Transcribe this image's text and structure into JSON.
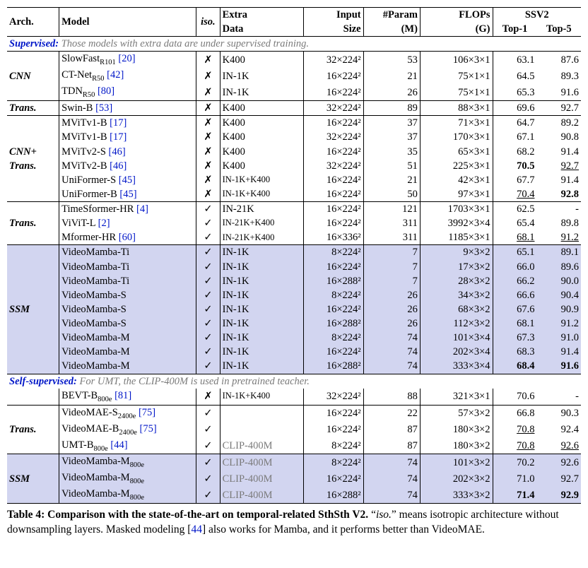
{
  "header": {
    "arch": "Arch.",
    "model": "Model",
    "iso": "iso.",
    "extra1": "Extra",
    "extra2": "Data",
    "input1": "Input",
    "input2": "Size",
    "param1": "#Param",
    "param2": "(M)",
    "flops1": "FLOPs",
    "flops2": "(G)",
    "ssv2": "SSV2",
    "top1": "Top-1",
    "top5": "Top-5"
  },
  "sections": {
    "sup": {
      "lead": "Supervised:",
      "note": "Those models with extra data are under supervised training."
    },
    "self": {
      "lead": "Self-supervised:",
      "note": "For UMT, the CLIP-400M is used in pretrained teacher."
    }
  },
  "groups": [
    {
      "arch": "CNN",
      "archItalic": true,
      "section": "sup",
      "rows": [
        {
          "model": "SlowFast",
          "sub": "R101",
          "ref": "[20]",
          "iso": "✗",
          "extra": "K400",
          "input": "32×224²",
          "param": "53",
          "flops": "106×3×1",
          "t1": "63.1",
          "t5": "87.6"
        },
        {
          "model": "CT-Net",
          "sub": "R50",
          "ref": "[42]",
          "iso": "✗",
          "extra": "IN-1K",
          "input": "16×224²",
          "param": "21",
          "flops": "75×1×1",
          "t1": "64.5",
          "t5": "89.3"
        },
        {
          "model": "TDN",
          "sub": "R50",
          "ref": "[80]",
          "iso": "✗",
          "extra": "IN-1K",
          "input": "16×224²",
          "param": "26",
          "flops": "75×1×1",
          "t1": "65.3",
          "t5": "91.6"
        }
      ]
    },
    {
      "arch": "Trans.",
      "archItalic": true,
      "section": "sup",
      "rows": [
        {
          "model": "Swin-B",
          "ref": "[53]",
          "iso": "✗",
          "extra": "K400",
          "input": "32×224²",
          "param": "89",
          "flops": "88×3×1",
          "t1": "69.6",
          "t5": "92.7"
        }
      ]
    },
    {
      "arch": "CNN+",
      "arch2": "Trans.",
      "archItalic": true,
      "section": "sup",
      "rows": [
        {
          "model": "MViTv1-B",
          "ref": "[17]",
          "iso": "✗",
          "extra": "K400",
          "input": "16×224²",
          "param": "37",
          "flops": "71×3×1",
          "t1": "64.7",
          "t5": "89.2"
        },
        {
          "model": "MViTv1-B",
          "ref": "[17]",
          "iso": "✗",
          "extra": "K400",
          "input": "32×224²",
          "param": "37",
          "flops": "170×3×1",
          "t1": "67.1",
          "t5": "90.8"
        },
        {
          "model": "MViTv2-S",
          "ref": "[46]",
          "iso": "✗",
          "extra": "K400",
          "input": "16×224²",
          "param": "35",
          "flops": "65×3×1",
          "t1": "68.2",
          "t5": "91.4"
        },
        {
          "model": "MViTv2-B",
          "ref": "[46]",
          "iso": "✗",
          "extra": "K400",
          "input": "32×224²",
          "param": "51",
          "flops": "225×3×1",
          "t1": "70.5",
          "t1b": true,
          "t5": "92.7",
          "t5ul": true
        },
        {
          "model": "UniFormer-S",
          "ref": "[45]",
          "iso": "✗",
          "extra": "IN-1K+K400",
          "extraSmall": true,
          "input": "16×224²",
          "param": "21",
          "flops": "42×3×1",
          "t1": "67.7",
          "t5": "91.4"
        },
        {
          "model": "UniFormer-B",
          "ref": "[45]",
          "iso": "✗",
          "extra": "IN-1K+K400",
          "extraSmall": true,
          "input": "16×224²",
          "param": "50",
          "flops": "97×3×1",
          "t1": "70.4",
          "t1ul": true,
          "t5": "92.8",
          "t5b": true
        }
      ]
    },
    {
      "arch": "Trans.",
      "archItalic": true,
      "section": "sup",
      "rows": [
        {
          "model": "TimeSformer-HR",
          "ref": "[4]",
          "iso": "✓",
          "extra": "IN-21K",
          "input": "16×224²",
          "param": "121",
          "flops": "1703×3×1",
          "t1": "62.5",
          "t5": "-"
        },
        {
          "model": "ViViT-L",
          "ref": "[2]",
          "iso": "✓",
          "extra": "IN-21K+K400",
          "extraSmall": true,
          "input": "16×224²",
          "param": "311",
          "flops": "3992×3×4",
          "t1": "65.4",
          "t5": "89.8"
        },
        {
          "model": "Mformer-HR",
          "ref": "[60]",
          "iso": "✓",
          "extra": "IN-21K+K400",
          "extraSmall": true,
          "input": "16×336²",
          "param": "311",
          "flops": "1185×3×1",
          "t1": "68.1",
          "t1ul": true,
          "t5": "91.2",
          "t5ul": true
        }
      ]
    },
    {
      "arch": "SSM",
      "archItalic": true,
      "section": "sup",
      "hl": true,
      "rows": [
        {
          "model": "VideoMamba-Ti",
          "iso": "✓",
          "extra": "IN-1K",
          "input": "8×224²",
          "param": "7",
          "flops": "9×3×2",
          "t1": "65.1",
          "t5": "89.1"
        },
        {
          "model": "VideoMamba-Ti",
          "iso": "✓",
          "extra": "IN-1K",
          "input": "16×224²",
          "param": "7",
          "flops": "17×3×2",
          "t1": "66.0",
          "t5": "89.6"
        },
        {
          "model": "VideoMamba-Ti",
          "iso": "✓",
          "extra": "IN-1K",
          "input": "16×288²",
          "param": "7",
          "flops": "28×3×2",
          "t1": "66.2",
          "t5": "90.0"
        },
        {
          "model": "VideoMamba-S",
          "iso": "✓",
          "extra": "IN-1K",
          "input": "8×224²",
          "param": "26",
          "flops": "34×3×2",
          "t1": "66.6",
          "t5": "90.4"
        },
        {
          "model": "VideoMamba-S",
          "iso": "✓",
          "extra": "IN-1K",
          "input": "16×224²",
          "param": "26",
          "flops": "68×3×2",
          "t1": "67.6",
          "t5": "90.9"
        },
        {
          "model": "VideoMamba-S",
          "iso": "✓",
          "extra": "IN-1K",
          "input": "16×288²",
          "param": "26",
          "flops": "112×3×2",
          "t1": "68.1",
          "t5": "91.2"
        },
        {
          "model": "VideoMamba-M",
          "iso": "✓",
          "extra": "IN-1K",
          "input": "8×224²",
          "param": "74",
          "flops": "101×3×4",
          "t1": "67.3",
          "t5": "91.0"
        },
        {
          "model": "VideoMamba-M",
          "iso": "✓",
          "extra": "IN-1K",
          "input": "16×224²",
          "param": "74",
          "flops": "202×3×4",
          "t1": "68.3",
          "t5": "91.4"
        },
        {
          "model": "VideoMamba-M",
          "iso": "✓",
          "extra": "IN-1K",
          "input": "16×288²",
          "param": "74",
          "flops": "333×3×4",
          "t1": "68.4",
          "t1b": true,
          "t5": "91.6",
          "t5b": true
        }
      ]
    },
    {
      "arch": "",
      "section": "self",
      "rows": [
        {
          "model": "BEVT-B",
          "sub": "800e",
          "ref": "[81]",
          "iso": "✗",
          "extra": "IN-1K+K400",
          "extraSmall": true,
          "input": "32×224²",
          "param": "88",
          "flops": "321×3×1",
          "t1": "70.6",
          "t5": "-"
        }
      ]
    },
    {
      "arch": "Trans.",
      "archItalic": true,
      "section": "self",
      "rows": [
        {
          "model": "VideoMAE-S",
          "sub": "2400e",
          "ref": "[75]",
          "iso": "✓",
          "extra": "",
          "input": "16×224²",
          "param": "22",
          "flops": "57×3×2",
          "t1": "66.8",
          "t5": "90.3"
        },
        {
          "model": "VideoMAE-B",
          "sub": "2400e",
          "ref": "[75]",
          "iso": "✓",
          "extra": "",
          "input": "16×224²",
          "param": "87",
          "flops": "180×3×2",
          "t1": "70.8",
          "t1ul": true,
          "t5": "92.4"
        },
        {
          "model": "UMT-B",
          "sub": "800e",
          "ref": "[44]",
          "iso": "✓",
          "extra": "CLIP-400M",
          "extraGrey": true,
          "input": "8×224²",
          "param": "87",
          "flops": "180×3×2",
          "t1": "70.8",
          "t1ul": true,
          "t5": "92.6",
          "t5ul": true
        }
      ]
    },
    {
      "arch": "SSM",
      "archItalic": true,
      "section": "self",
      "hl": true,
      "rows": [
        {
          "model": "VideoMamba-M",
          "sub": "800e",
          "iso": "✓",
          "extra": "CLIP-400M",
          "extraGrey": true,
          "input": "8×224²",
          "param": "74",
          "flops": "101×3×2",
          "t1": "70.2",
          "t5": "92.6"
        },
        {
          "model": "VideoMamba-M",
          "sub": "800e",
          "iso": "✓",
          "extra": "CLIP-400M",
          "extraGrey": true,
          "input": "16×224²",
          "param": "74",
          "flops": "202×3×2",
          "t1": "71.0",
          "t5": "92.7"
        },
        {
          "model": "VideoMamba-M",
          "sub": "800e",
          "iso": "✓",
          "extra": "CLIP-400M",
          "extraGrey": true,
          "input": "16×288²",
          "param": "74",
          "flops": "333×3×2",
          "t1": "71.4",
          "t1b": true,
          "t5": "92.9",
          "t5b": true
        }
      ]
    }
  ],
  "caption": {
    "lead": "Table 4: Comparison with the state-of-the-art on temporal-related SthSth V2.",
    "rest1": " “",
    "iso": "iso.",
    "rest2": "” means isotropic architecture without downsampling layers. Masked modeling [",
    "ref": "44",
    "rest3": "] also works for Mamba, and it performs better than VideoMAE."
  },
  "colors": {
    "highlight": "#d2d5f0",
    "refBlue": "#0016c8",
    "noteGrey": "#7a7a7a"
  }
}
